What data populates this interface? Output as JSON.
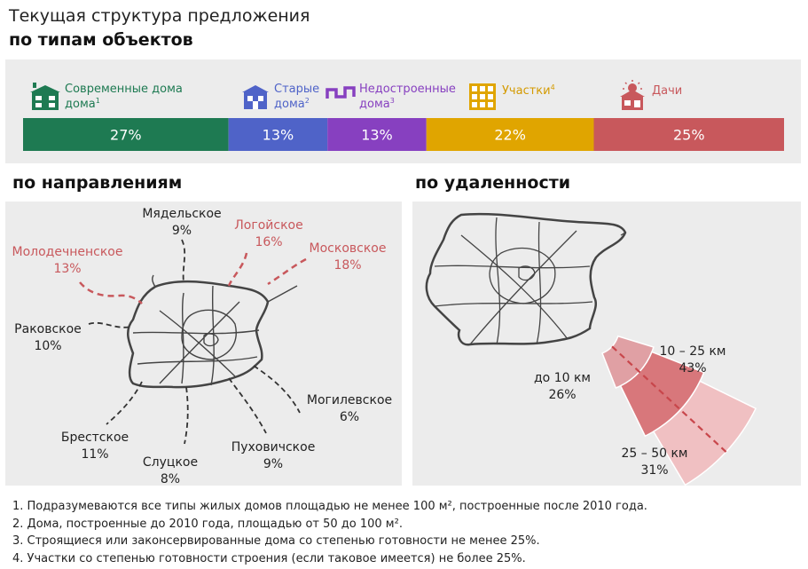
{
  "header": {
    "title_line1": "Текущая структура предложения",
    "title_line2": "по типам объектов"
  },
  "sections": {
    "directions": "по направлениям",
    "distance": "по удаленности"
  },
  "colors": {
    "modern": "#1e7a52",
    "old": "#4f63c8",
    "unfinished": "#8740c0",
    "plots": "#e0a500",
    "dachas": "#c8585c",
    "highlight": "#c8585c",
    "road": "#444444"
  },
  "chart_data": [
    {
      "type": "bar",
      "stacked": true,
      "orientation": "horizontal",
      "categories": [
        "Современные дома",
        "Старые дома",
        "Недостроенные дома",
        "Участки",
        "Дачи"
      ],
      "footnote_refs": [
        "1",
        "2",
        "3",
        "4",
        ""
      ],
      "values": [
        27,
        13,
        13,
        22,
        25
      ],
      "value_labels": [
        "27%",
        "13%",
        "13%",
        "22%",
        "25%"
      ],
      "icons": [
        "house-modern-icon",
        "house-old-icon",
        "foundation-icon",
        "plot-grid-icon",
        "dacha-sun-icon"
      ]
    },
    {
      "type": "table",
      "title": "по направлениям",
      "directions": [
        {
          "name": "Мядельское",
          "value": 9,
          "label": "9%",
          "highlight": false
        },
        {
          "name": "Логойское",
          "value": 16,
          "label": "16%",
          "highlight": true
        },
        {
          "name": "Московское",
          "value": 18,
          "label": "18%",
          "highlight": true
        },
        {
          "name": "Молодечненское",
          "value": 13,
          "label": "13%",
          "highlight": true
        },
        {
          "name": "Раковское",
          "value": 10,
          "label": "10%",
          "highlight": false
        },
        {
          "name": "Могилевское",
          "value": 6,
          "label": "6%",
          "highlight": false
        },
        {
          "name": "Брестское",
          "value": 11,
          "label": "11%",
          "highlight": false
        },
        {
          "name": "Пуховичское",
          "value": 9,
          "label": "9%",
          "highlight": false
        },
        {
          "name": "Слуцкое",
          "value": 8,
          "label": "8%",
          "highlight": false
        }
      ]
    },
    {
      "type": "pie",
      "title": "по удаленности",
      "categories": [
        "до 10 км",
        "10 – 25 км",
        "25 – 50 км"
      ],
      "values": [
        26,
        43,
        31
      ],
      "value_labels": [
        "26%",
        "43%",
        "31%"
      ]
    }
  ],
  "footnotes": [
    "1. Подразумеваются все типы жилых домов площадью не менее 100 м²",
    ", построенные после 2010 года.",
    "2. Дома, построенные до 2010 года, площадью от 50 до 100 м²",
    ".",
    "3. Строящиеся или законсервированные дома со степенью готовности не менее 25%.",
    "4. Участки со степенью готовности строения (если таковое имеется) не более 25%."
  ]
}
